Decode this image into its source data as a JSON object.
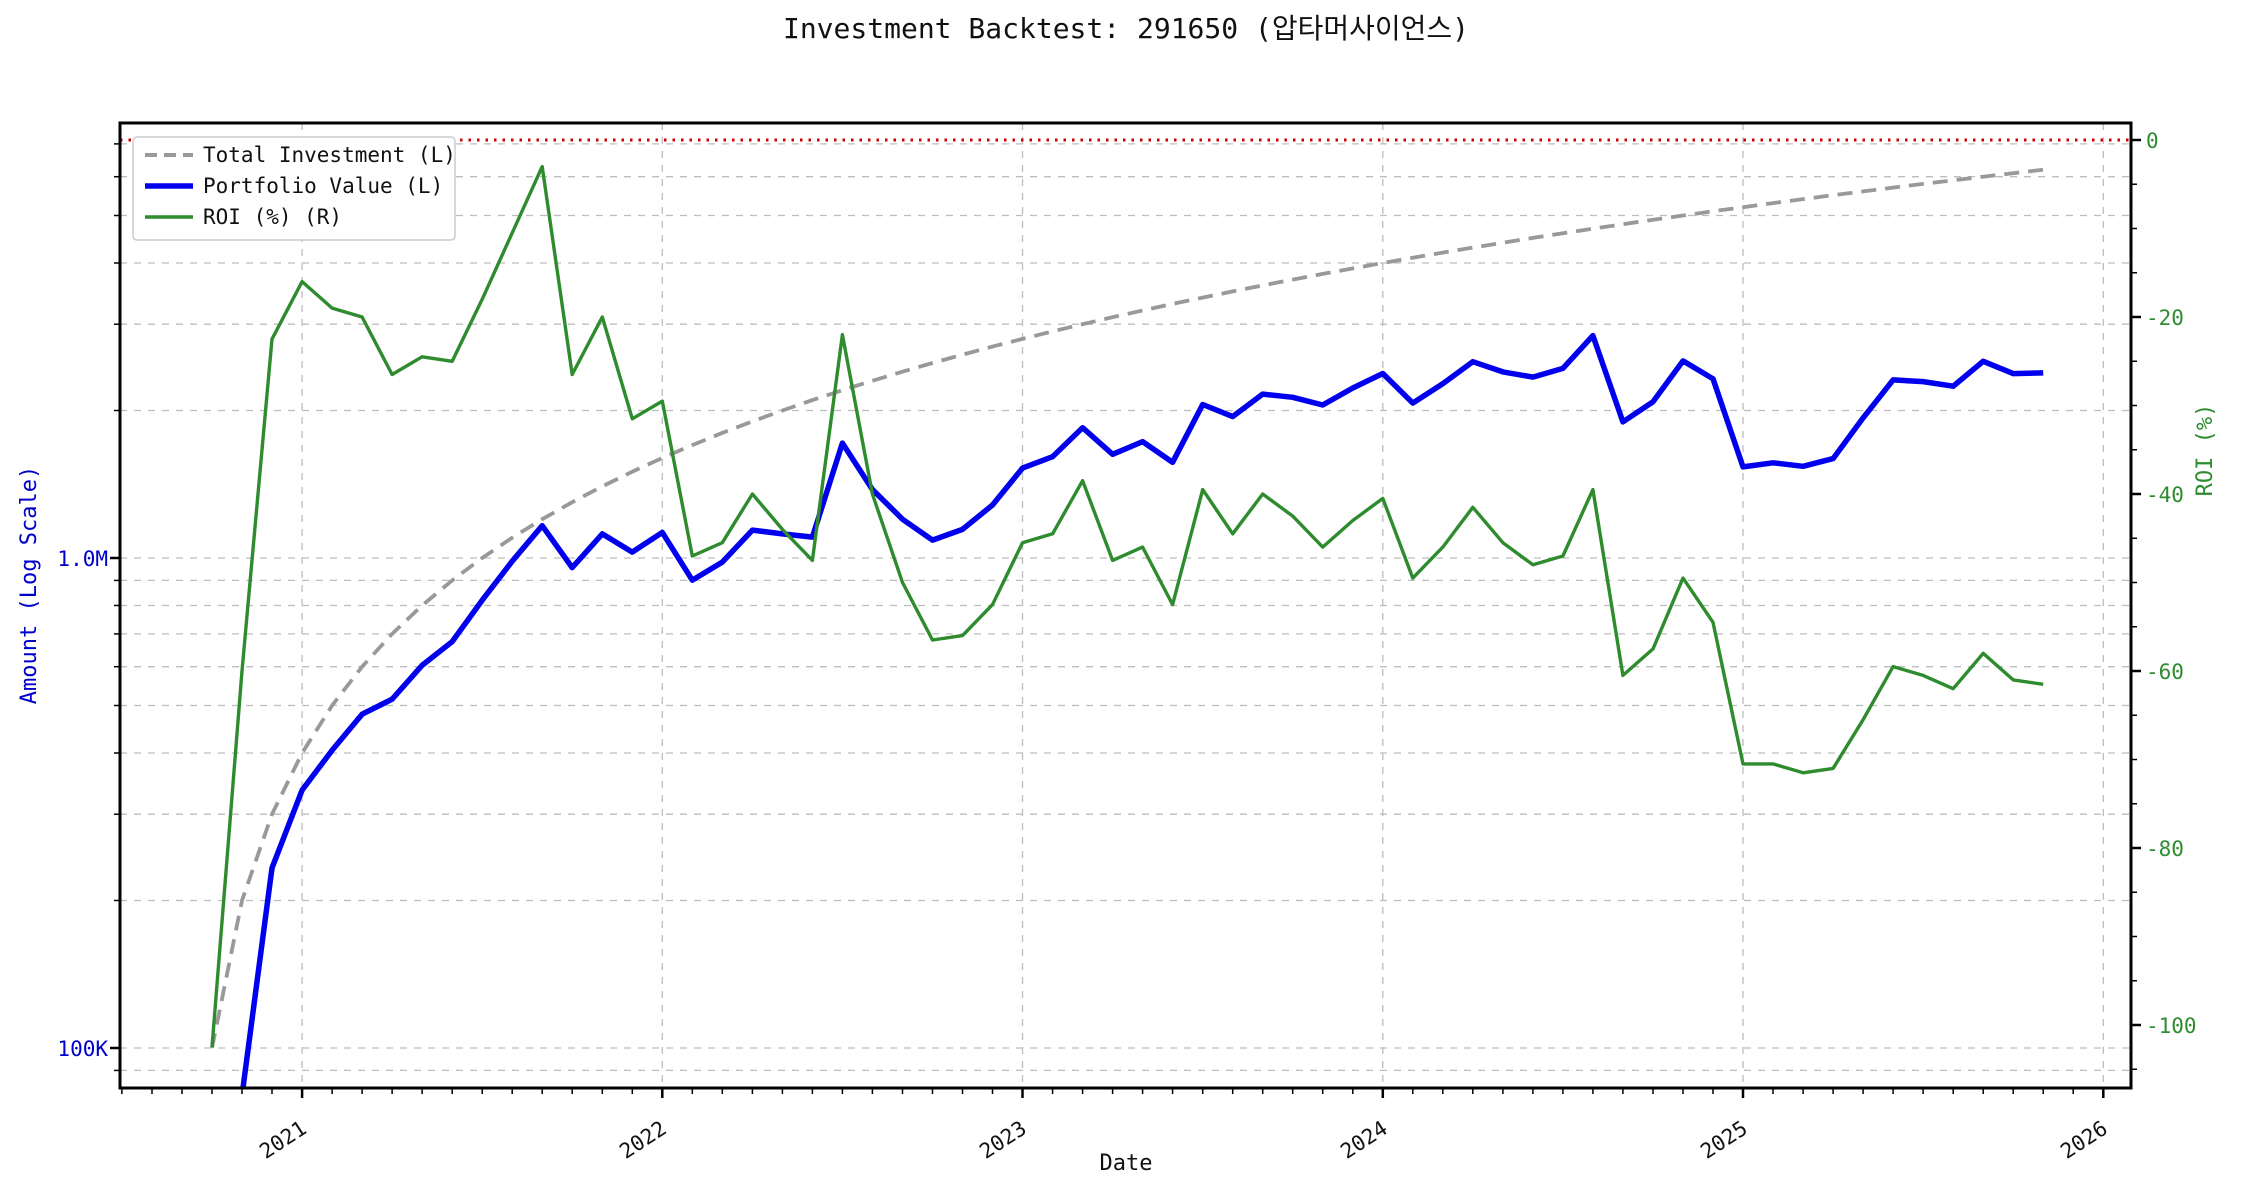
{
  "title": "Investment Backtest: 291650 (압타머사이언스)",
  "axes": {
    "left": {
      "label": "Amount (Log Scale)",
      "color": "#0000cc",
      "scale": "log",
      "tick_labels": [
        "1.0M",
        "100K"
      ]
    },
    "right": {
      "label": "ROI (%)",
      "color": "#2e8b2e",
      "tick_labels": [
        "0",
        "-20",
        "-40",
        "-60",
        "-80",
        "-100"
      ]
    },
    "x": {
      "label": "Date",
      "tick_labels": [
        "2021",
        "2022",
        "2023",
        "2024",
        "2025",
        "2026"
      ]
    }
  },
  "legend": {
    "items": [
      {
        "label": "Total Investment (L)",
        "color": "#999999",
        "style": "dashed"
      },
      {
        "label": "Portfolio Value (L)",
        "color": "#0000ee",
        "style": "solid"
      },
      {
        "label": "ROI (%) (R)",
        "color": "#2e8b2e",
        "style": "solid"
      }
    ]
  },
  "chart_data": {
    "type": "line",
    "title": "Investment Backtest: 291650 (압타머사이언스)",
    "xlabel": "Date",
    "x_tick_labels": [
      "2021",
      "2022",
      "2023",
      "2024",
      "2025",
      "2026"
    ],
    "left_axis": {
      "label": "Amount (Log Scale)",
      "scale": "log",
      "tick_labels": [
        "1.0M",
        "100K"
      ],
      "range_millions": [
        0.083,
        7.74
      ]
    },
    "right_axis": {
      "label": "ROI (%)",
      "ticks": [
        0,
        -20,
        -40,
        -60,
        -80,
        -100
      ],
      "range": [
        -107,
        1.9
      ]
    },
    "reference_line": {
      "axis": "right",
      "value": 0,
      "color": "#cc0000",
      "style": "dotted"
    },
    "grid": true,
    "legend_position": "upper-left",
    "categories": [
      "2020-10",
      "2020-11",
      "2020-12",
      "2021-01",
      "2021-02",
      "2021-03",
      "2021-04",
      "2021-05",
      "2021-06",
      "2021-07",
      "2021-08",
      "2021-09",
      "2021-10",
      "2021-11",
      "2021-12",
      "2022-01",
      "2022-02",
      "2022-03",
      "2022-04",
      "2022-05",
      "2022-06",
      "2022-07",
      "2022-08",
      "2022-09",
      "2022-10",
      "2022-11",
      "2022-12",
      "2023-01",
      "2023-02",
      "2023-03",
      "2023-04",
      "2023-05",
      "2023-06",
      "2023-07",
      "2023-08",
      "2023-09",
      "2023-10",
      "2023-11",
      "2023-12",
      "2024-01",
      "2024-02",
      "2024-03",
      "2024-04",
      "2024-05",
      "2024-06",
      "2024-07",
      "2024-08",
      "2024-09",
      "2024-10",
      "2024-11",
      "2024-12",
      "2025-01",
      "2025-02",
      "2025-03",
      "2025-04",
      "2025-05",
      "2025-06",
      "2025-07",
      "2025-08",
      "2025-09",
      "2025-10",
      "2025-11"
    ],
    "series": [
      {
        "name": "Total Investment (L)",
        "axis": "left",
        "unit": "M KRW",
        "color": "#999999",
        "style": "dashed",
        "values": [
          0.1,
          0.2,
          0.3,
          0.4,
          0.5,
          0.6,
          0.7,
          0.8,
          0.9,
          1.0,
          1.1,
          1.2,
          1.3,
          1.4,
          1.5,
          1.6,
          1.7,
          1.8,
          1.9,
          2.0,
          2.1,
          2.2,
          2.3,
          2.4,
          2.5,
          2.6,
          2.7,
          2.8,
          2.9,
          3.0,
          3.1,
          3.2,
          3.3,
          3.4,
          3.5,
          3.6,
          3.7,
          3.8,
          3.9,
          4.0,
          4.1,
          4.2,
          4.3,
          4.4,
          4.5,
          4.6,
          4.7,
          4.8,
          4.9,
          5.0,
          5.1,
          5.2,
          5.3,
          5.4,
          5.5,
          5.6,
          5.7,
          5.8,
          5.9,
          6.0,
          6.1,
          6.2
        ]
      },
      {
        "name": "Portfolio Value (L)",
        "axis": "left",
        "unit": "M KRW",
        "color": "#0000ee",
        "style": "solid",
        "values": [
          null,
          0.08,
          0.233,
          0.336,
          0.405,
          0.48,
          0.515,
          0.604,
          0.675,
          0.82,
          0.985,
          1.164,
          0.956,
          1.12,
          1.028,
          1.128,
          0.901,
          0.981,
          1.14,
          1.12,
          1.103,
          1.716,
          1.38,
          1.2,
          1.088,
          1.144,
          1.283,
          1.526,
          1.61,
          1.845,
          1.628,
          1.728,
          1.568,
          2.057,
          1.943,
          2.16,
          2.128,
          2.052,
          2.223,
          2.38,
          2.071,
          2.268,
          2.516,
          2.398,
          2.34,
          2.438,
          2.844,
          1.896,
          2.083,
          2.525,
          2.321,
          1.534,
          1.564,
          1.539,
          1.595,
          1.932,
          2.309,
          2.291,
          2.242,
          2.52,
          2.379,
          2.387
        ]
      },
      {
        "name": "ROI (%) (R)",
        "axis": "right",
        "unit": "%",
        "color": "#2e8b2e",
        "style": "solid",
        "values": [
          -102.5,
          -60,
          -22.5,
          -16,
          -19,
          -20,
          -26.5,
          -24.5,
          -25,
          -18,
          -10.5,
          -3,
          -26.5,
          -20,
          -31.5,
          -29.5,
          -47,
          -45.5,
          -40,
          -44,
          -47.5,
          -22,
          -40,
          -50,
          -56.5,
          -56,
          -52.5,
          -45.5,
          -44.5,
          -38.5,
          -47.5,
          -46,
          -52.5,
          -39.5,
          -44.5,
          -40,
          -42.5,
          -46,
          -43,
          -40.5,
          -49.5,
          -46,
          -41.5,
          -45.5,
          -48,
          -47,
          -39.5,
          -60.5,
          -57.5,
          -49.5,
          -54.5,
          -70.5,
          -70.5,
          -71.5,
          -71,
          -65.5,
          -59.5,
          -60.5,
          -62,
          -58,
          -61,
          -61.5
        ]
      }
    ]
  }
}
